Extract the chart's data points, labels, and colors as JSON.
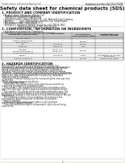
{
  "bg_color": "#f0f0eb",
  "page_bg": "#ffffff",
  "header_left": "Product name: Lithium Ion Battery Cell",
  "header_right_line1": "Substance number: SDS-049-050-010",
  "header_right_line2": "Establishment / Revision: Dec.7.2010",
  "main_title": "Safety data sheet for chemical products (SDS)",
  "section1_title": "1. PRODUCT AND COMPANY IDENTIFICATION",
  "section1_lines": [
    "  • Product name: Lithium Ion Battery Cell",
    "  • Product code: Cylindrical-type cell",
    "      SNY-B6500, SNY-B6500, SNY-B6500A",
    "  • Company name:    Sanyo Electric Co., Ltd., Mobile Energy Company",
    "  • Address:          2001, Kamishinden, Sumoto-City, Hyogo, Japan",
    "  • Telephone number:  +81-799-26-4111",
    "  • Fax number:  +81-799-26-4123",
    "  • Emergency telephone number (daytime): +81-799-26-3662",
    "                           (Night and holiday): +81-799-26-3131"
  ],
  "section2_title": "2. COMPOSITION / INFORMATION ON INGREDIENTS",
  "section2_intro": "  • Substance or preparation: Preparation",
  "section2_sub": "  • Information about the chemical nature of product:",
  "table_headers": [
    "Component chemical name",
    "CAS number",
    "Concentration /\nConcentration range",
    "Classification and\nhazard labeling"
  ],
  "section3_title": "3. HAZARDS IDENTIFICATION",
  "section3_para1": "For this battery cell, chemical substances are stored in a hermetically-sealed metal case, designed to withstand temperature changes during normal conditions during normal use. As a result, during normal use, there is no physical danger of ignition or explosion and therefore danger of hazardous materials leakage.",
  "section3_para2": "  However, if exposed to a fire, added mechanical shocks, decompose, when electrolyte misuse may be gas release cannot be operated. The battery cell case will be breached at fire-proofing. Hazardous materials may be released.",
  "section3_para3": "  Moreover, if heated strongly by the surrounding fire, soot gas may be emitted.",
  "section3_bullets": [
    "• Most important hazard and effects:",
    "  Human health effects:",
    "    Inhalation: The release of the electrolyte has an anesthesia action and stimulates in respiratory tract.",
    "    Skin contact: The release of the electrolyte stimulates a skin. The electrolyte skin contact causes a sore and stimulation on the skin.",
    "    Eye contact: The release of the electrolyte stimulates eyes. The electrolyte eye contact causes a sore and stimulation on the eye. Especially, a substance that causes a strong inflammation of the eye is contained.",
    "    Environmental effects: Since a battery cell remains in the environment, do not throw out it into the environment.",
    "• Specific hazards:",
    "    If the electrolyte contacts with water, it will generate detrimental hydrogen fluoride.",
    "    Since the used electrolyte is inflammable liquid, do not bring close to fire."
  ],
  "footer_line": "3"
}
